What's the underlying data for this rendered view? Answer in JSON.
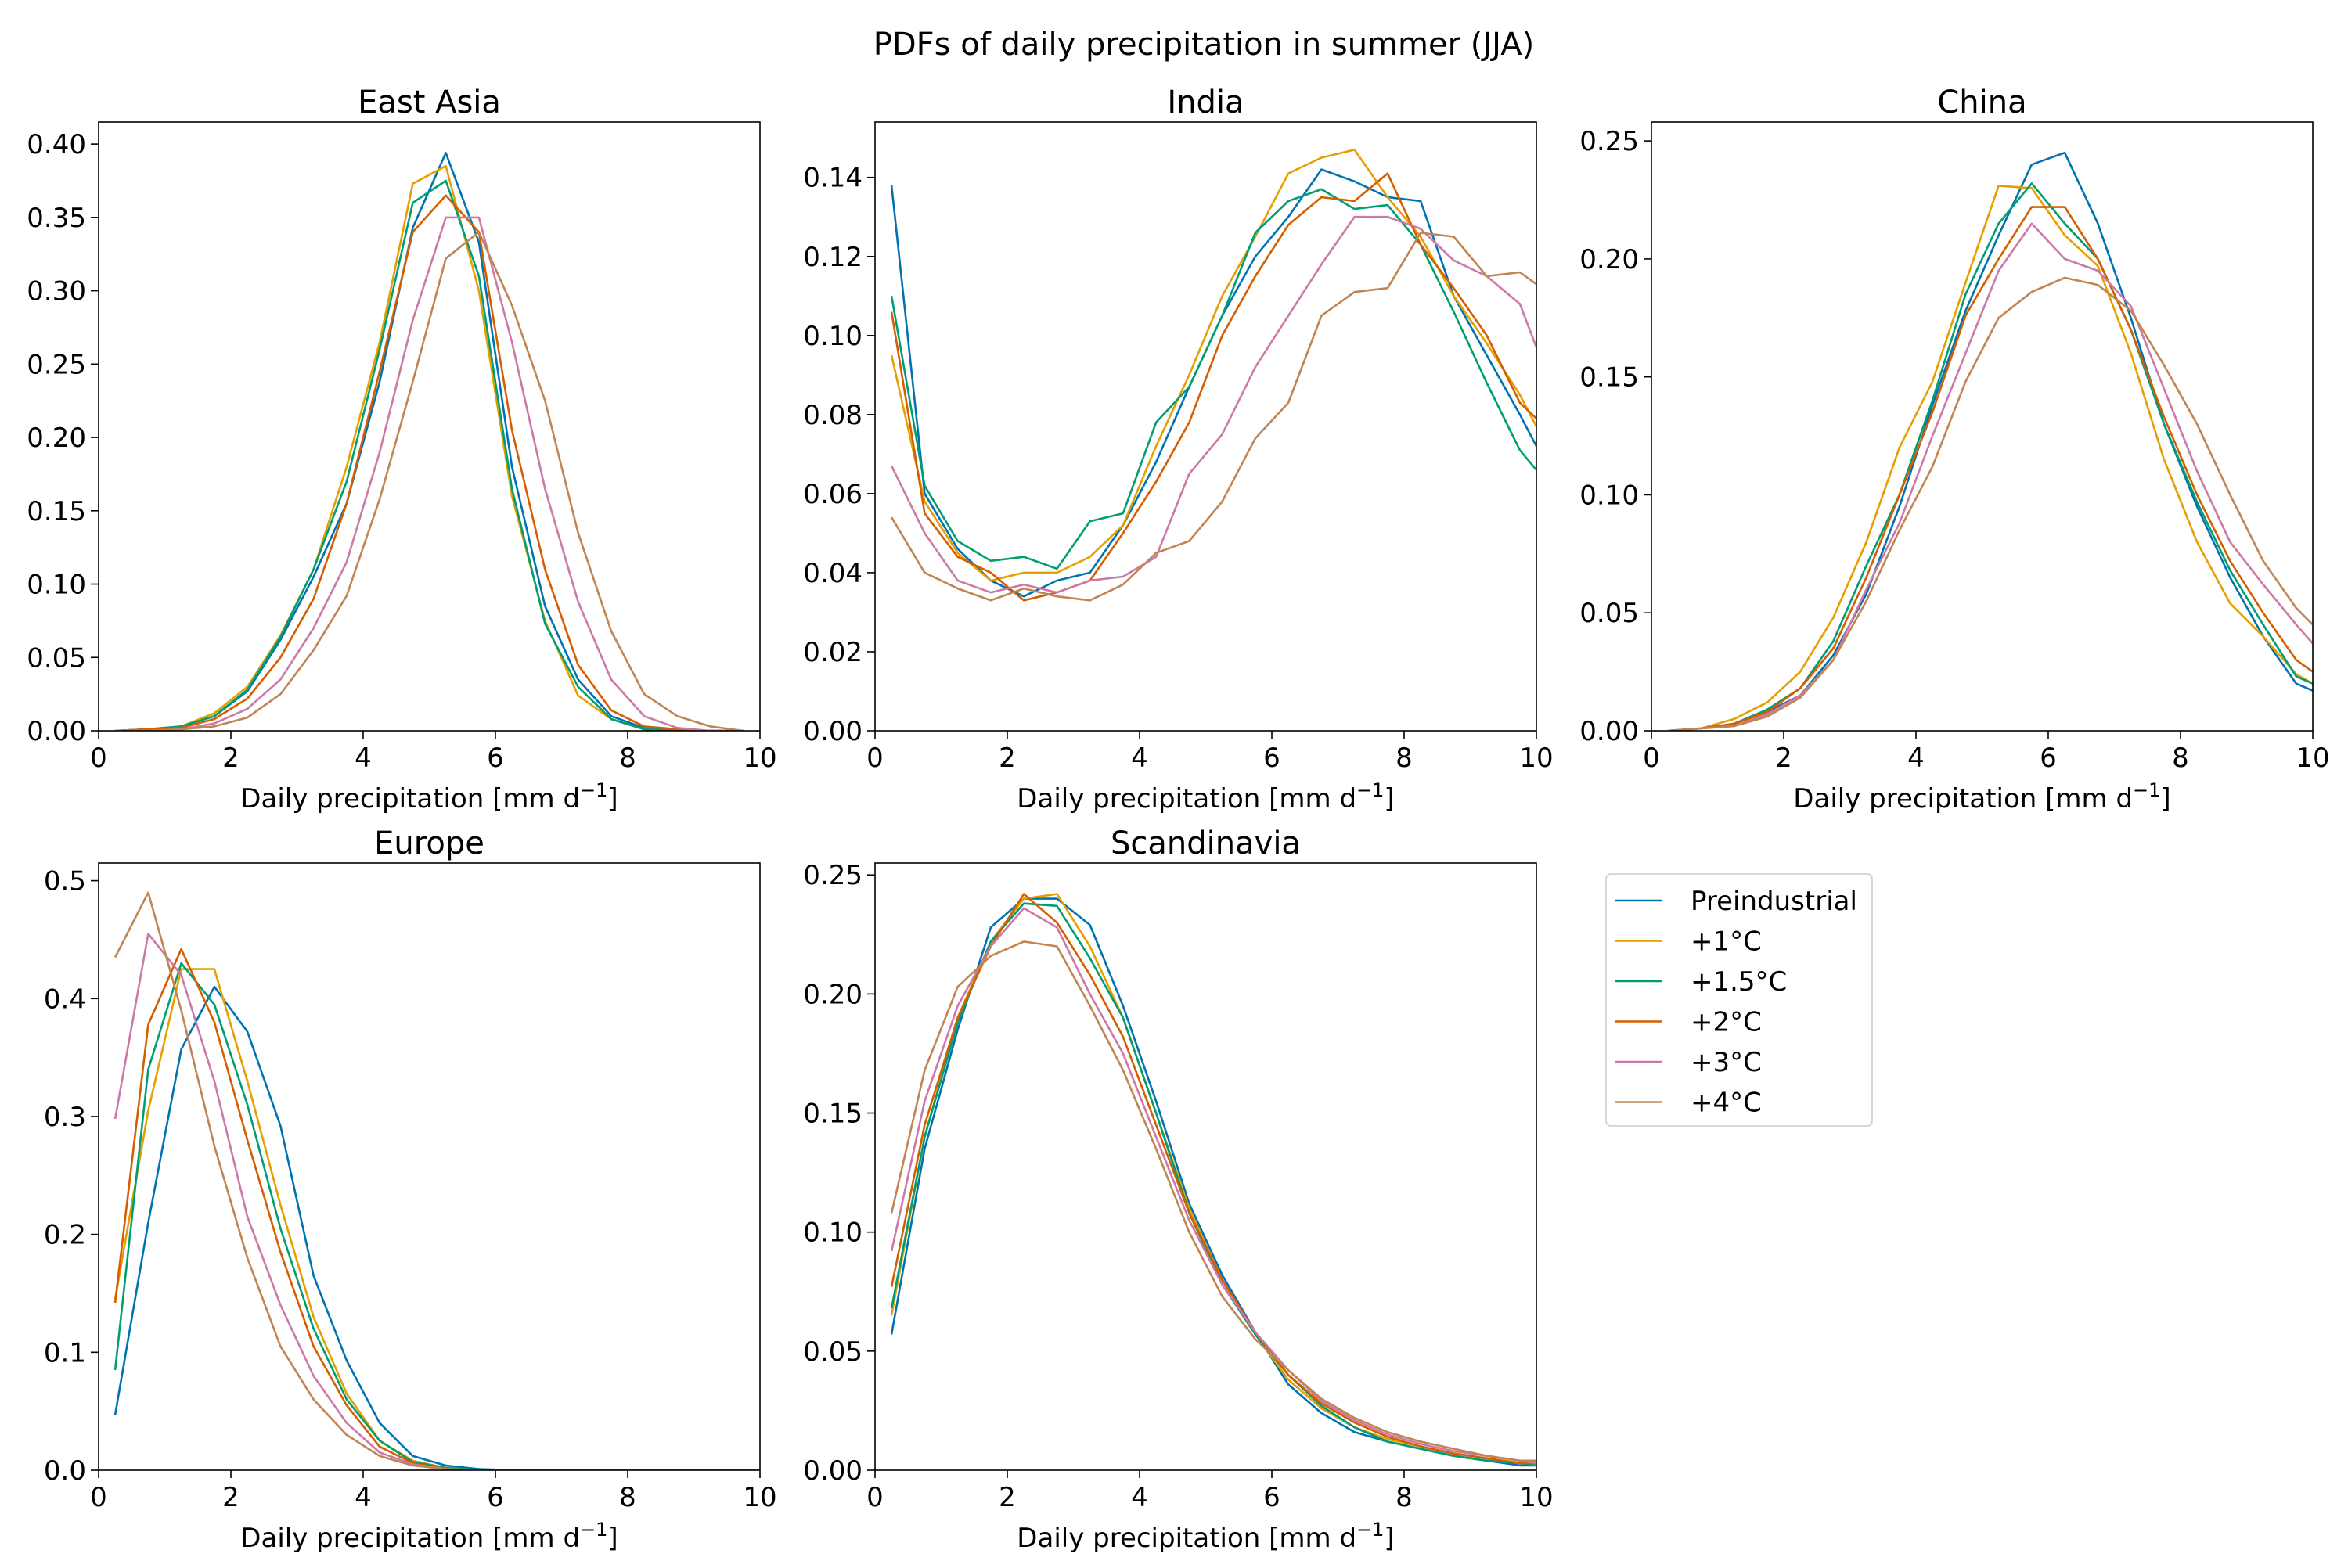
{
  "figure": {
    "title": "PDFs of daily precipitation in summer (JJA)"
  },
  "colors": {
    "Preindustrial": "#0072b2",
    "+1°C": "#e69f00",
    "+1.5°C": "#009e73",
    "+2°C": "#d55e00",
    "+3°C": "#cc79a7",
    "+4°C": "#c08552"
  },
  "legend": {
    "placement": "right of Scandinavia panel",
    "entries": [
      "Preindustrial",
      "+1°C",
      "+1.5°C",
      "+2°C",
      "+3°C",
      "+4°C"
    ]
  },
  "chart_data": [
    {
      "type": "line",
      "title": "East Asia",
      "xlabel": "Daily precipitation [mm d−1]",
      "xlim": [
        0,
        10
      ],
      "ylim": [
        0,
        0.415
      ],
      "xticks": [
        0,
        2,
        4,
        6,
        8,
        10
      ],
      "yticks": [
        0.0,
        0.05,
        0.1,
        0.15,
        0.2,
        0.25,
        0.3,
        0.35,
        0.4
      ],
      "ytick_decimals": 2,
      "x": [
        0.25,
        0.75,
        1.25,
        1.75,
        2.25,
        2.75,
        3.25,
        3.75,
        4.25,
        4.75,
        5.25,
        5.75,
        6.25,
        6.75,
        7.25,
        7.75,
        8.25,
        8.75,
        9.25,
        9.75
      ],
      "series": [
        {
          "name": "Preindustrial",
          "values": [
            0.0,
            0.001,
            0.003,
            0.01,
            0.027,
            0.062,
            0.105,
            0.155,
            0.238,
            0.343,
            0.394,
            0.333,
            0.18,
            0.085,
            0.035,
            0.01,
            0.002,
            0.0,
            0.0,
            0.0
          ]
        },
        {
          "name": "+1°C",
          "values": [
            0.0,
            0.001,
            0.003,
            0.012,
            0.03,
            0.065,
            0.11,
            0.18,
            0.265,
            0.373,
            0.385,
            0.3,
            0.16,
            0.075,
            0.024,
            0.008,
            0.001,
            0.0,
            0.0,
            0.0
          ]
        },
        {
          "name": "+1.5°C",
          "values": [
            0.0,
            0.001,
            0.003,
            0.01,
            0.028,
            0.064,
            0.11,
            0.17,
            0.26,
            0.36,
            0.375,
            0.31,
            0.165,
            0.073,
            0.03,
            0.008,
            0.001,
            0.0,
            0.0,
            0.0
          ]
        },
        {
          "name": "+2°C",
          "values": [
            0.0,
            0.001,
            0.002,
            0.008,
            0.022,
            0.05,
            0.09,
            0.155,
            0.245,
            0.34,
            0.365,
            0.34,
            0.205,
            0.11,
            0.045,
            0.014,
            0.003,
            0.001,
            0.0,
            0.0
          ]
        },
        {
          "name": "+3°C",
          "values": [
            0.0,
            0.0,
            0.001,
            0.005,
            0.015,
            0.035,
            0.07,
            0.115,
            0.19,
            0.28,
            0.35,
            0.35,
            0.265,
            0.165,
            0.088,
            0.035,
            0.01,
            0.002,
            0.0,
            0.0
          ]
        },
        {
          "name": "+4°C",
          "values": [
            0.0,
            0.0,
            0.001,
            0.003,
            0.009,
            0.025,
            0.055,
            0.092,
            0.158,
            0.238,
            0.322,
            0.34,
            0.29,
            0.225,
            0.135,
            0.068,
            0.025,
            0.01,
            0.003,
            0.0
          ]
        }
      ]
    },
    {
      "type": "line",
      "title": "India",
      "xlabel": "Daily precipitation [mm d−1]",
      "xlim": [
        0,
        10
      ],
      "ylim": [
        0,
        0.154
      ],
      "xticks": [
        0,
        2,
        4,
        6,
        8,
        10
      ],
      "yticks": [
        0.0,
        0.02,
        0.04,
        0.06,
        0.08,
        0.1,
        0.12,
        0.14
      ],
      "ytick_decimals": 2,
      "x": [
        0.25,
        0.75,
        1.25,
        1.75,
        2.25,
        2.75,
        3.25,
        3.75,
        4.25,
        4.75,
        5.25,
        5.75,
        6.25,
        6.75,
        7.25,
        7.75,
        8.25,
        8.75,
        9.25,
        9.75,
        10.0
      ],
      "series": [
        {
          "name": "Preindustrial",
          "values": [
            0.138,
            0.06,
            0.046,
            0.038,
            0.034,
            0.038,
            0.04,
            0.052,
            0.068,
            0.087,
            0.105,
            0.12,
            0.13,
            0.142,
            0.139,
            0.135,
            0.134,
            0.11,
            0.095,
            0.08,
            0.072
          ]
        },
        {
          "name": "+1°C",
          "values": [
            0.095,
            0.058,
            0.045,
            0.038,
            0.04,
            0.04,
            0.044,
            0.052,
            0.072,
            0.09,
            0.11,
            0.125,
            0.141,
            0.145,
            0.147,
            0.135,
            0.125,
            0.11,
            0.098,
            0.085,
            0.077
          ]
        },
        {
          "name": "+1.5°C",
          "values": [
            0.11,
            0.062,
            0.048,
            0.043,
            0.044,
            0.041,
            0.053,
            0.055,
            0.078,
            0.087,
            0.105,
            0.126,
            0.134,
            0.137,
            0.132,
            0.133,
            0.123,
            0.106,
            0.088,
            0.071,
            0.066
          ]
        },
        {
          "name": "+2°C",
          "values": [
            0.106,
            0.055,
            0.044,
            0.04,
            0.033,
            0.035,
            0.038,
            0.05,
            0.063,
            0.078,
            0.1,
            0.115,
            0.128,
            0.135,
            0.134,
            0.141,
            0.123,
            0.112,
            0.1,
            0.083,
            0.079
          ]
        },
        {
          "name": "+3°C",
          "values": [
            0.067,
            0.05,
            0.038,
            0.035,
            0.037,
            0.035,
            0.038,
            0.039,
            0.044,
            0.065,
            0.075,
            0.092,
            0.105,
            0.118,
            0.13,
            0.13,
            0.127,
            0.119,
            0.115,
            0.108,
            0.097
          ]
        },
        {
          "name": "+4°C",
          "values": [
            0.054,
            0.04,
            0.036,
            0.033,
            0.036,
            0.034,
            0.033,
            0.037,
            0.045,
            0.048,
            0.058,
            0.074,
            0.083,
            0.105,
            0.111,
            0.112,
            0.126,
            0.125,
            0.115,
            0.116,
            0.113
          ]
        }
      ]
    },
    {
      "type": "line",
      "title": "China",
      "xlabel": "Daily precipitation [mm d−1]",
      "xlim": [
        0,
        10
      ],
      "ylim": [
        0,
        0.258
      ],
      "xticks": [
        0,
        2,
        4,
        6,
        8,
        10
      ],
      "yticks": [
        0.0,
        0.05,
        0.1,
        0.15,
        0.2,
        0.25
      ],
      "ytick_decimals": 2,
      "x": [
        0.25,
        0.75,
        1.25,
        1.75,
        2.25,
        2.75,
        3.25,
        3.75,
        4.25,
        4.75,
        5.25,
        5.75,
        6.25,
        6.75,
        7.25,
        7.75,
        8.25,
        8.75,
        9.25,
        9.75,
        10.0
      ],
      "series": [
        {
          "name": "Preindustrial",
          "values": [
            0.0,
            0.001,
            0.003,
            0.008,
            0.015,
            0.032,
            0.058,
            0.095,
            0.138,
            0.178,
            0.21,
            0.24,
            0.245,
            0.215,
            0.175,
            0.13,
            0.095,
            0.065,
            0.04,
            0.02,
            0.017
          ]
        },
        {
          "name": "+1°C",
          "values": [
            0.0,
            0.001,
            0.005,
            0.012,
            0.025,
            0.048,
            0.08,
            0.12,
            0.148,
            0.19,
            0.231,
            0.23,
            0.21,
            0.197,
            0.16,
            0.115,
            0.08,
            0.054,
            0.04,
            0.024,
            0.02
          ]
        },
        {
          "name": "+1.5°C",
          "values": [
            0.0,
            0.001,
            0.003,
            0.009,
            0.018,
            0.038,
            0.07,
            0.1,
            0.14,
            0.185,
            0.215,
            0.232,
            0.215,
            0.2,
            0.17,
            0.13,
            0.097,
            0.068,
            0.045,
            0.023,
            0.02
          ]
        },
        {
          "name": "+2°C",
          "values": [
            0.0,
            0.001,
            0.003,
            0.008,
            0.018,
            0.035,
            0.065,
            0.1,
            0.135,
            0.176,
            0.2,
            0.222,
            0.222,
            0.2,
            0.17,
            0.133,
            0.1,
            0.072,
            0.05,
            0.03,
            0.025
          ]
        },
        {
          "name": "+3°C",
          "values": [
            0.0,
            0.001,
            0.002,
            0.007,
            0.015,
            0.03,
            0.06,
            0.088,
            0.125,
            0.16,
            0.195,
            0.215,
            0.2,
            0.195,
            0.18,
            0.145,
            0.11,
            0.08,
            0.062,
            0.045,
            0.037
          ]
        },
        {
          "name": "+4°C",
          "values": [
            0.0,
            0.001,
            0.002,
            0.006,
            0.014,
            0.03,
            0.055,
            0.085,
            0.112,
            0.148,
            0.175,
            0.186,
            0.192,
            0.189,
            0.178,
            0.155,
            0.13,
            0.1,
            0.072,
            0.052,
            0.045
          ]
        }
      ]
    },
    {
      "type": "line",
      "title": "Europe",
      "xlabel": "Daily precipitation [mm d−1]",
      "xlim": [
        0,
        10
      ],
      "ylim": [
        0,
        0.515
      ],
      "xticks": [
        0,
        2,
        4,
        6,
        8,
        10
      ],
      "yticks": [
        0.0,
        0.1,
        0.2,
        0.3,
        0.4,
        0.5
      ],
      "ytick_decimals": 1,
      "x": [
        0.25,
        0.75,
        1.25,
        1.75,
        2.25,
        2.75,
        3.25,
        3.75,
        4.25,
        4.75,
        5.25,
        5.75,
        6.25,
        6.75,
        7.25,
        7.75,
        8.25,
        8.75,
        9.25,
        9.75,
        10.0
      ],
      "series": [
        {
          "name": "Preindustrial",
          "values": [
            0.047,
            0.21,
            0.357,
            0.41,
            0.372,
            0.292,
            0.165,
            0.093,
            0.04,
            0.012,
            0.004,
            0.001,
            0.0,
            0.0,
            0.0,
            0.0,
            0.0,
            0.0,
            0.0,
            0.0,
            0.0
          ]
        },
        {
          "name": "+1°C",
          "values": [
            0.145,
            0.305,
            0.425,
            0.425,
            0.33,
            0.225,
            0.13,
            0.065,
            0.025,
            0.008,
            0.002,
            0.0,
            0.0,
            0.0,
            0.0,
            0.0,
            0.0,
            0.0,
            0.0,
            0.0,
            0.0
          ]
        },
        {
          "name": "+1.5°C",
          "values": [
            0.085,
            0.34,
            0.43,
            0.395,
            0.31,
            0.205,
            0.12,
            0.06,
            0.025,
            0.007,
            0.002,
            0.0,
            0.0,
            0.0,
            0.0,
            0.0,
            0.0,
            0.0,
            0.0,
            0.0,
            0.0
          ]
        },
        {
          "name": "+2°C",
          "values": [
            0.142,
            0.378,
            0.442,
            0.38,
            0.28,
            0.185,
            0.105,
            0.055,
            0.02,
            0.006,
            0.001,
            0.0,
            0.0,
            0.0,
            0.0,
            0.0,
            0.0,
            0.0,
            0.0,
            0.0,
            0.0
          ]
        },
        {
          "name": "+3°C",
          "values": [
            0.298,
            0.455,
            0.42,
            0.33,
            0.215,
            0.14,
            0.08,
            0.04,
            0.015,
            0.005,
            0.001,
            0.0,
            0.0,
            0.0,
            0.0,
            0.0,
            0.0,
            0.0,
            0.0,
            0.0,
            0.0
          ]
        },
        {
          "name": "+4°C",
          "values": [
            0.435,
            0.49,
            0.39,
            0.275,
            0.18,
            0.105,
            0.06,
            0.03,
            0.012,
            0.004,
            0.001,
            0.0,
            0.0,
            0.0,
            0.0,
            0.0,
            0.0,
            0.0,
            0.0,
            0.0,
            0.0
          ]
        }
      ]
    },
    {
      "type": "line",
      "title": "Scandinavia",
      "xlabel": "Daily precipitation [mm d−1]",
      "xlim": [
        0,
        10
      ],
      "ylim": [
        0,
        0.255
      ],
      "xticks": [
        0,
        2,
        4,
        6,
        8,
        10
      ],
      "yticks": [
        0.0,
        0.05,
        0.1,
        0.15,
        0.2,
        0.25
      ],
      "ytick_decimals": 2,
      "x": [
        0.25,
        0.75,
        1.25,
        1.75,
        2.25,
        2.75,
        3.25,
        3.75,
        4.25,
        4.75,
        5.25,
        5.75,
        6.25,
        6.75,
        7.25,
        7.75,
        8.25,
        8.75,
        9.25,
        9.75,
        10.0
      ],
      "series": [
        {
          "name": "Preindustrial",
          "values": [
            0.057,
            0.135,
            0.185,
            0.228,
            0.24,
            0.24,
            0.229,
            0.195,
            0.155,
            0.112,
            0.082,
            0.058,
            0.036,
            0.024,
            0.016,
            0.012,
            0.009,
            0.006,
            0.004,
            0.002,
            0.002
          ]
        },
        {
          "name": "+1°C",
          "values": [
            0.065,
            0.14,
            0.19,
            0.222,
            0.24,
            0.242,
            0.22,
            0.19,
            0.15,
            0.11,
            0.08,
            0.057,
            0.038,
            0.026,
            0.018,
            0.013,
            0.01,
            0.007,
            0.005,
            0.003,
            0.003
          ]
        },
        {
          "name": "+1.5°C",
          "values": [
            0.068,
            0.14,
            0.188,
            0.222,
            0.238,
            0.237,
            0.215,
            0.19,
            0.15,
            0.108,
            0.078,
            0.057,
            0.04,
            0.027,
            0.018,
            0.012,
            0.009,
            0.006,
            0.004,
            0.003,
            0.002
          ]
        },
        {
          "name": "+2°C",
          "values": [
            0.077,
            0.145,
            0.19,
            0.22,
            0.242,
            0.23,
            0.208,
            0.182,
            0.145,
            0.108,
            0.08,
            0.058,
            0.04,
            0.028,
            0.02,
            0.014,
            0.01,
            0.007,
            0.005,
            0.003,
            0.003
          ]
        },
        {
          "name": "+3°C",
          "values": [
            0.092,
            0.155,
            0.195,
            0.22,
            0.236,
            0.228,
            0.2,
            0.175,
            0.14,
            0.105,
            0.078,
            0.058,
            0.042,
            0.029,
            0.021,
            0.015,
            0.011,
            0.008,
            0.006,
            0.004,
            0.003
          ]
        },
        {
          "name": "+4°C",
          "values": [
            0.108,
            0.168,
            0.203,
            0.216,
            0.222,
            0.22,
            0.195,
            0.168,
            0.135,
            0.1,
            0.073,
            0.055,
            0.042,
            0.03,
            0.022,
            0.016,
            0.012,
            0.009,
            0.006,
            0.004,
            0.004
          ]
        }
      ]
    }
  ]
}
